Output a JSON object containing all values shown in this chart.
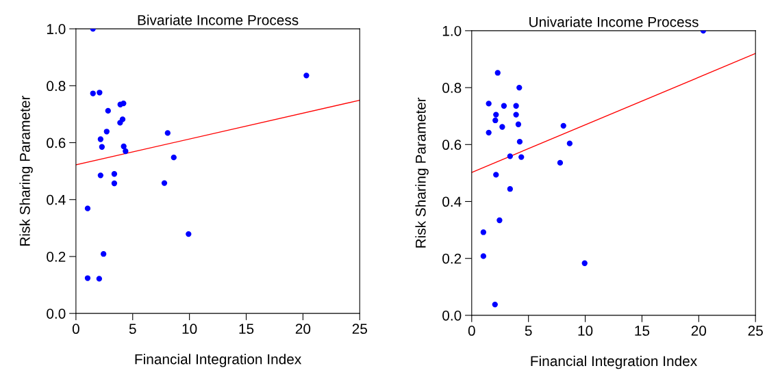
{
  "chart_data": [
    {
      "type": "scatter",
      "title": "Bivariate Income Process",
      "xlabel": "Financial Integration Index",
      "ylabel": "Risk Sharing Parameter",
      "xlim": [
        0,
        25
      ],
      "ylim": [
        0,
        1
      ],
      "xticks": [
        0,
        5,
        10,
        15,
        20,
        25
      ],
      "yticks": [
        {
          "value": 0,
          "label": "0.0"
        },
        {
          "value": 0.2,
          "label": "0.2"
        },
        {
          "value": 0.4,
          "label": "0.4"
        },
        {
          "value": 0.6,
          "label": "0.6"
        },
        {
          "value": 0.8,
          "label": "0.8"
        },
        {
          "value": 1,
          "label": "1.0"
        }
      ],
      "grid": false,
      "legend": false,
      "series": [
        {
          "marker": "circle",
          "color": "#0000ff",
          "x": [
            1.5,
            1.5,
            2.08,
            2.83,
            3.91,
            4.19,
            3.89,
            4.11,
            2.71,
            2.17,
            2.29,
            4.21,
            4.37,
            2.17,
            3.38,
            3.38,
            1.03,
            2.43,
            1.03,
            2.05,
            8.08,
            8.62,
            7.79,
            9.92,
            20.3
          ],
          "values": [
            1.0,
            0.773,
            0.776,
            0.712,
            0.734,
            0.738,
            0.67,
            0.682,
            0.639,
            0.612,
            0.585,
            0.587,
            0.57,
            0.485,
            0.49,
            0.457,
            0.369,
            0.209,
            0.124,
            0.122,
            0.634,
            0.548,
            0.458,
            0.279,
            0.836
          ]
        },
        {
          "type": "line",
          "marker": "none",
          "color": "#ff0000",
          "x": [
            0,
            25
          ],
          "values": [
            0.522,
            0.749
          ]
        }
      ]
    },
    {
      "type": "scatter",
      "title": "Univariate Income Process",
      "xlabel": "Financial Integration Index",
      "ylabel": "Risk Sharing Parameter",
      "xlim": [
        0,
        25
      ],
      "ylim": [
        0,
        1
      ],
      "xticks": [
        0,
        5,
        10,
        15,
        20,
        25
      ],
      "yticks": [
        {
          "value": 0,
          "label": "0.0"
        },
        {
          "value": 0.2,
          "label": "0.2"
        },
        {
          "value": 0.4,
          "label": "0.4"
        },
        {
          "value": 0.6,
          "label": "0.6"
        },
        {
          "value": 0.8,
          "label": "0.8"
        },
        {
          "value": 1,
          "label": "1.0"
        }
      ],
      "grid": false,
      "legend": false,
      "series": [
        {
          "marker": "circle",
          "color": "#0000ff",
          "x": [
            2.29,
            4.19,
            1.5,
            2.84,
            3.91,
            2.14,
            3.91,
            2.08,
            4.11,
            2.69,
            1.5,
            4.23,
            3.38,
            4.37,
            2.14,
            3.38,
            2.45,
            1.03,
            1.03,
            2.05,
            8.08,
            8.63,
            7.79,
            9.95,
            20.4
          ],
          "values": [
            0.852,
            0.8,
            0.744,
            0.736,
            0.736,
            0.705,
            0.705,
            0.685,
            0.671,
            0.662,
            0.642,
            0.61,
            0.559,
            0.556,
            0.494,
            0.444,
            0.334,
            0.292,
            0.208,
            0.038,
            0.666,
            0.604,
            0.536,
            0.183,
            1.0
          ]
        },
        {
          "type": "line",
          "marker": "none",
          "color": "#ff0000",
          "x": [
            0,
            25
          ],
          "values": [
            0.502,
            0.92
          ]
        }
      ]
    }
  ]
}
